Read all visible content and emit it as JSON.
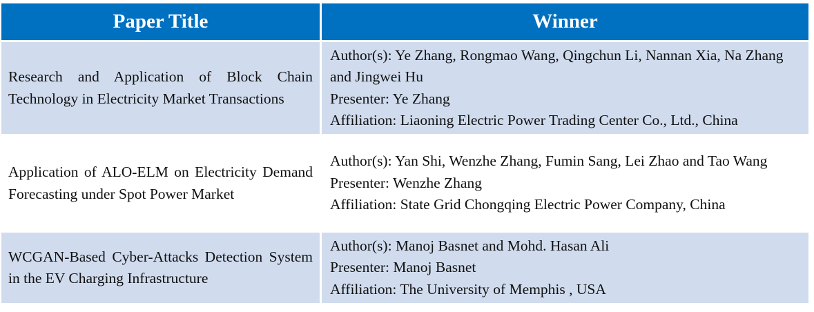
{
  "header": {
    "paper_title": "Paper Title",
    "winner": "Winner"
  },
  "rows": [
    {
      "title": "Research and Application of Block Chain Technology in Electricity Market Transactions",
      "authors": "Author(s): Ye Zhang, Rongmao Wang, Qingchun Li, Nannan Xia, Na Zhang and Jingwei Hu",
      "presenter": "Presenter: Ye Zhang",
      "affiliation": "Affiliation: Liaoning Electric Power Trading Center Co., Ltd., China"
    },
    {
      "title": "Application of ALO-ELM on Electricity Demand Forecasting under Spot Power Market",
      "authors": "Author(s): Yan Shi, Wenzhe Zhang, Fumin Sang, Lei Zhao and Tao Wang",
      "presenter": "Presenter: Wenzhe Zhang",
      "affiliation": "Affiliation: State Grid Chongqing Electric Power Company, China"
    },
    {
      "title": "WCGAN-Based Cyber-Attacks Detection System in the EV Charging Infrastructure",
      "authors": "Author(s): Manoj Basnet and Mohd. Hasan Ali",
      "presenter": "Presenter: Manoj Basnet",
      "affiliation": "Affiliation: The University of Memphis , USA"
    }
  ],
  "colors": {
    "header": "#0070C0",
    "shaded_row": "#D0DCEE"
  }
}
